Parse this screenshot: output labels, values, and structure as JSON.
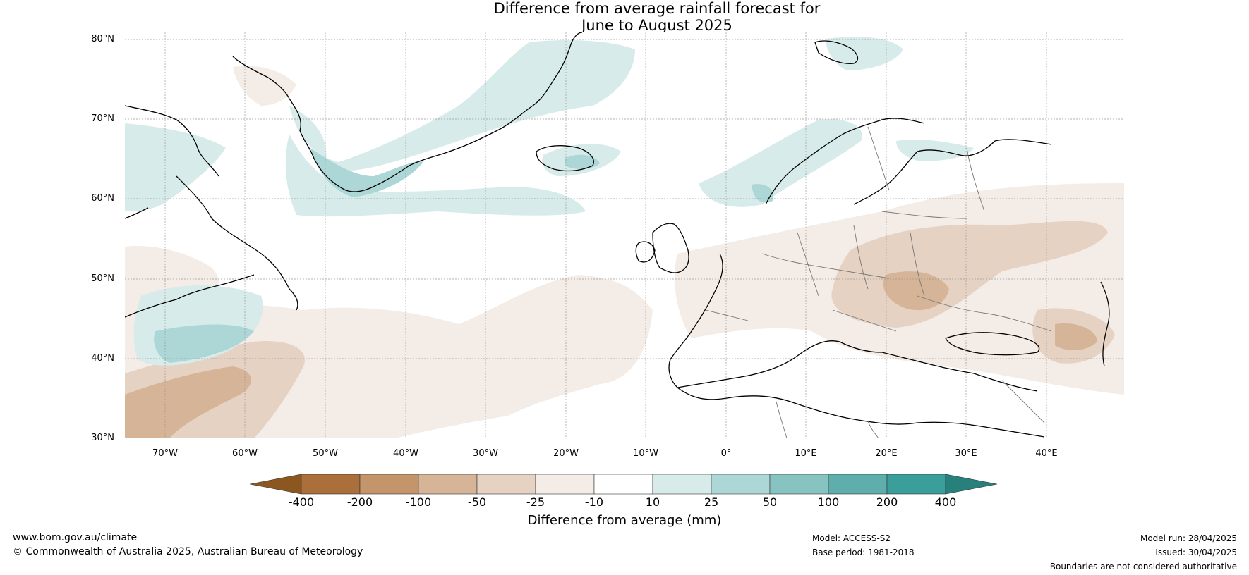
{
  "title": {
    "line1": "Difference from average rainfall forecast for",
    "line2": "June to August 2025"
  },
  "lat_labels": [
    "80°N",
    "70°N",
    "60°N",
    "50°N",
    "40°N",
    "30°N"
  ],
  "lon_labels": [
    "70°W",
    "60°W",
    "50°W",
    "40°W",
    "30°W",
    "20°W",
    "10°W",
    "0°",
    "10°E",
    "20°E",
    "30°E",
    "40°E"
  ],
  "colorbar": {
    "labels": [
      "-400",
      "-200",
      "-100",
      "-50",
      "-25",
      "-10",
      "10",
      "25",
      "50",
      "100",
      "200",
      "400"
    ],
    "colors": [
      "#8c5620",
      "#ab6f3b",
      "#c4946a",
      "#d6b497",
      "#e6d2c3",
      "#f4ece6",
      "#ffffff",
      "#d7ebea",
      "#acd7d6",
      "#86c3c1",
      "#5faeab",
      "#3a9e9a",
      "#28807c"
    ],
    "title": "Difference from average (mm)"
  },
  "footer": {
    "website": "www.bom.gov.au/climate",
    "copyright": "© Commonwealth of Australia 2025, Australian Bureau of Meteorology",
    "model": "Model: ACCESS-S2",
    "base_period": "Base period: 1981-2018",
    "model_run": "Model run: 28/04/2025",
    "issued": "Issued: 30/04/2025",
    "disclaimer": "Boundaries are not considered authoritative"
  }
}
